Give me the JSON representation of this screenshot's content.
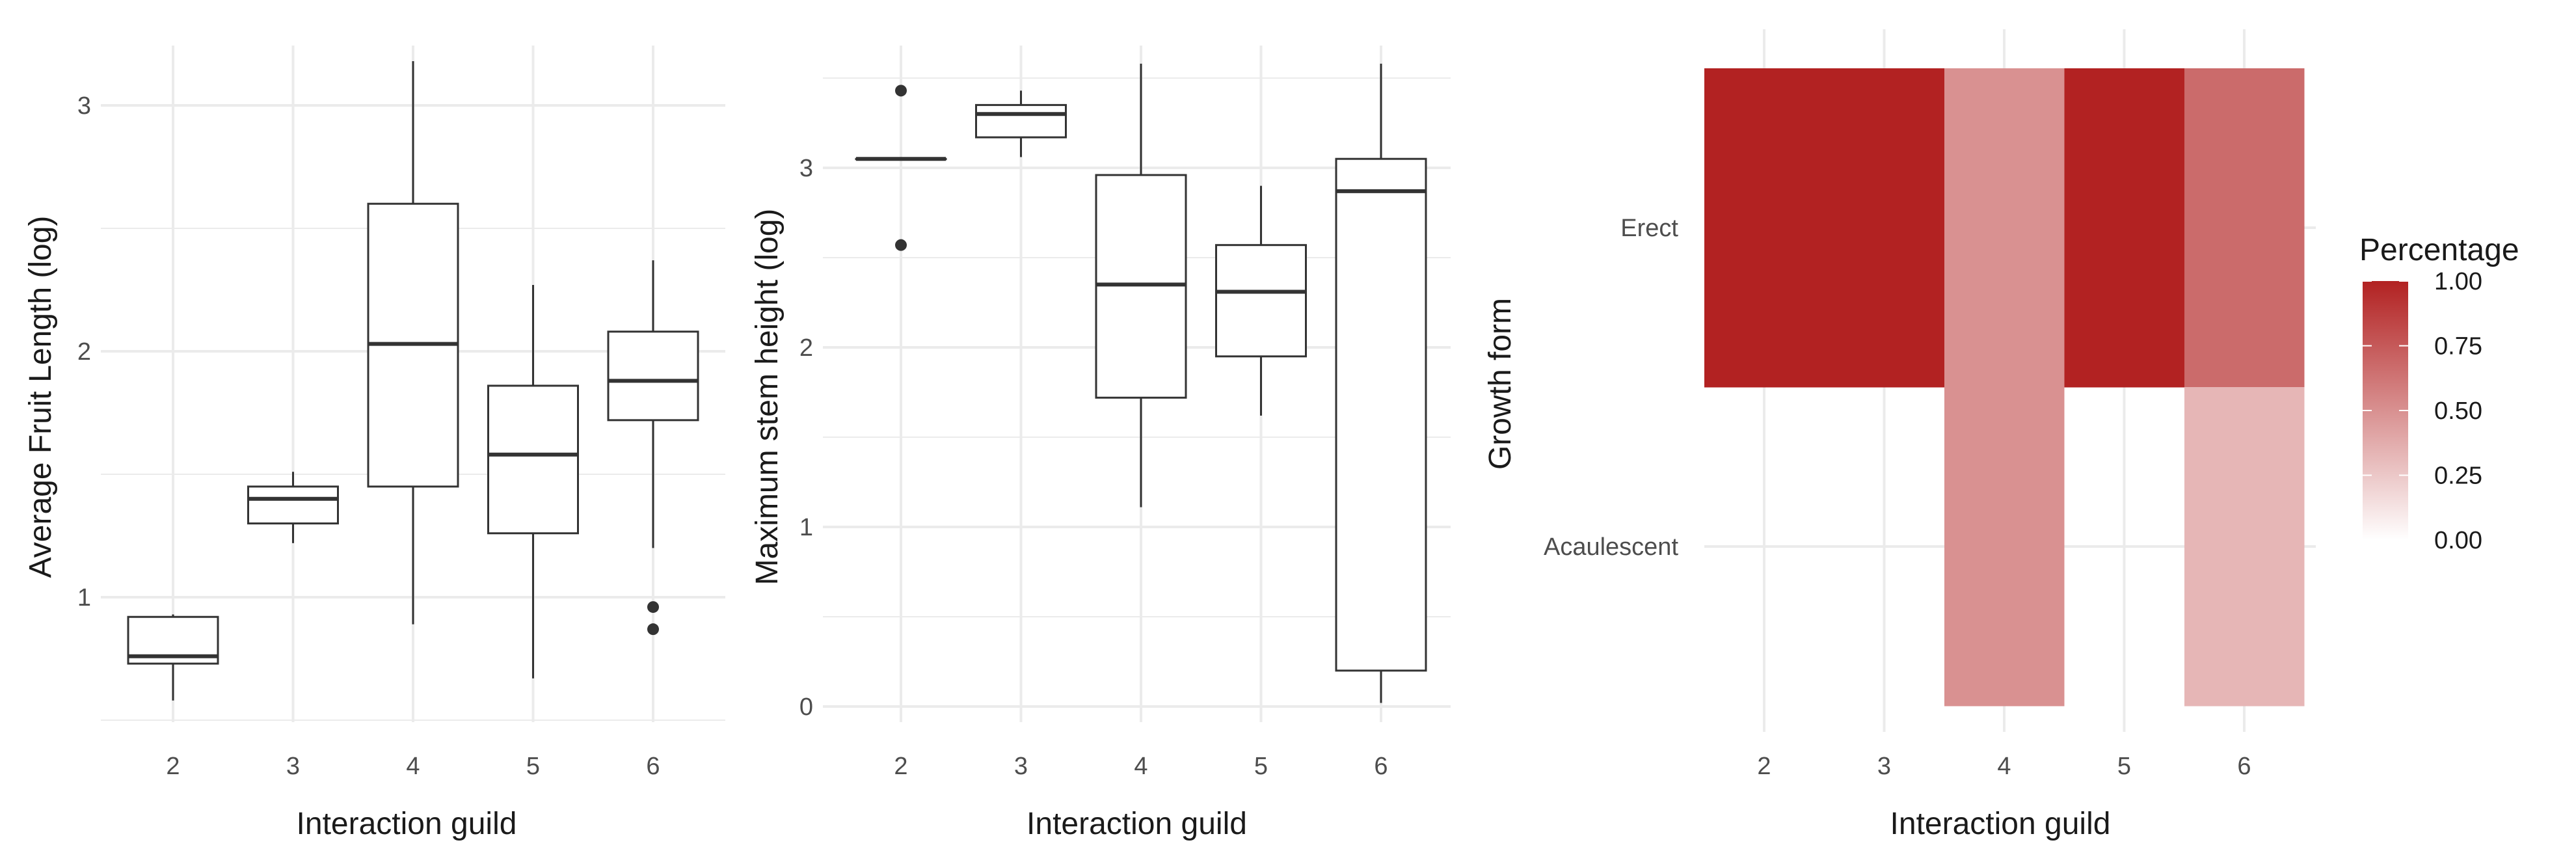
{
  "colors": {
    "grid": "#ebebeb",
    "box_stroke": "#333333",
    "heat_high": "#b22222",
    "heat_low": "#ffffff"
  },
  "chart_data": [
    {
      "type": "box",
      "xlabel": "Interaction guild",
      "ylabel": "Average Fruit Length (log)",
      "categories": [
        "2",
        "3",
        "4",
        "5",
        "6"
      ],
      "yticks": [
        1,
        2,
        3
      ],
      "ylim": [
        0.48,
        3.18
      ],
      "grid": true,
      "boxes": [
        {
          "category": "2",
          "min": 0.58,
          "q1": 0.73,
          "median": 0.76,
          "q3": 0.92,
          "max": 0.93,
          "outliers": []
        },
        {
          "category": "3",
          "min": 1.22,
          "q1": 1.3,
          "median": 1.4,
          "q3": 1.45,
          "max": 1.51,
          "outliers": []
        },
        {
          "category": "4",
          "min": 0.89,
          "q1": 1.45,
          "median": 2.03,
          "q3": 2.6,
          "max": 3.18,
          "outliers": []
        },
        {
          "category": "5",
          "min": 0.67,
          "q1": 1.26,
          "median": 1.58,
          "q3": 1.86,
          "max": 2.27,
          "outliers": []
        },
        {
          "category": "6",
          "min": 1.2,
          "q1": 1.72,
          "median": 1.88,
          "q3": 2.08,
          "max": 2.37,
          "outliers": [
            0.96,
            0.87
          ]
        }
      ]
    },
    {
      "type": "box",
      "xlabel": "Interaction guild",
      "ylabel": "Maximum stem height (log)",
      "categories": [
        "2",
        "3",
        "4",
        "5",
        "6"
      ],
      "yticks": [
        0,
        1,
        2,
        3
      ],
      "ylim": [
        0.0,
        3.58
      ],
      "grid": true,
      "boxes": [
        {
          "category": "2",
          "min": 3.05,
          "q1": 3.05,
          "median": 3.05,
          "q3": 3.05,
          "max": 3.05,
          "outliers": [
            3.43,
            2.57
          ]
        },
        {
          "category": "3",
          "min": 3.06,
          "q1": 3.17,
          "median": 3.3,
          "q3": 3.35,
          "max": 3.43,
          "outliers": []
        },
        {
          "category": "4",
          "min": 1.11,
          "q1": 1.72,
          "median": 2.35,
          "q3": 2.96,
          "max": 3.58,
          "outliers": []
        },
        {
          "category": "5",
          "min": 1.62,
          "q1": 1.95,
          "median": 2.31,
          "q3": 2.57,
          "max": 2.9,
          "outliers": []
        },
        {
          "category": "6",
          "min": 0.02,
          "q1": 0.2,
          "median": 2.87,
          "q3": 3.05,
          "max": 3.58,
          "outliers": []
        }
      ]
    },
    {
      "type": "heatmap",
      "xlabel": "Interaction guild",
      "ylabel": "Growth form",
      "categories": [
        "2",
        "3",
        "4",
        "5",
        "6"
      ],
      "rows": [
        "Erect",
        "Acaulescent"
      ],
      "grid": true,
      "cells": [
        {
          "x": 2,
          "y": "Erect",
          "value": 1.0
        },
        {
          "x": 3,
          "y": "Erect",
          "value": 1.0
        },
        {
          "x": 4,
          "y": "Erect",
          "value": 0.5
        },
        {
          "x": 5,
          "y": "Erect",
          "value": 1.0
        },
        {
          "x": 6,
          "y": "Erect",
          "value": 0.67
        },
        {
          "x": 4,
          "y": "Acaulescent",
          "value": 0.5
        },
        {
          "x": 6,
          "y": "Acaulescent",
          "value": 0.33
        }
      ],
      "legend": {
        "title": "Percentage",
        "ticks": [
          "0.00",
          "0.25",
          "0.50",
          "0.75",
          "1.00"
        ],
        "range": [
          0,
          1
        ],
        "position": "right"
      }
    }
  ]
}
